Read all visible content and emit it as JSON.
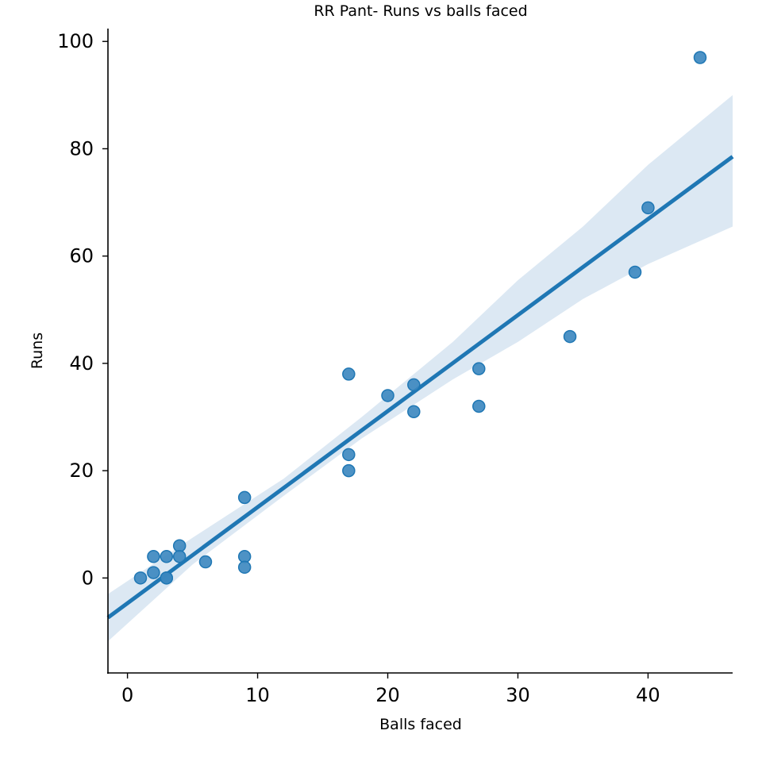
{
  "chart_data": {
    "type": "scatter",
    "title": "RR Pant- Runs vs balls faced",
    "xlabel": "Balls faced",
    "ylabel": "Runs",
    "xlim": [
      -1.5,
      46.5
    ],
    "ylim": [
      -17.7,
      102.4
    ],
    "xticks": [
      0,
      10,
      20,
      30,
      40
    ],
    "yticks": [
      0,
      20,
      40,
      60,
      80,
      100
    ],
    "grid": false,
    "points": [
      {
        "x": 1,
        "y": 0
      },
      {
        "x": 2,
        "y": 4
      },
      {
        "x": 2,
        "y": 1
      },
      {
        "x": 3,
        "y": 4
      },
      {
        "x": 3,
        "y": 0
      },
      {
        "x": 3,
        "y": 0
      },
      {
        "x": 4,
        "y": 6
      },
      {
        "x": 4,
        "y": 4
      },
      {
        "x": 6,
        "y": 3
      },
      {
        "x": 9,
        "y": 15
      },
      {
        "x": 9,
        "y": 4
      },
      {
        "x": 9,
        "y": 2
      },
      {
        "x": 17,
        "y": 38
      },
      {
        "x": 17,
        "y": 23
      },
      {
        "x": 17,
        "y": 20
      },
      {
        "x": 20,
        "y": 34
      },
      {
        "x": 22,
        "y": 36
      },
      {
        "x": 22,
        "y": 31
      },
      {
        "x": 27,
        "y": 39
      },
      {
        "x": 27,
        "y": 32
      },
      {
        "x": 34,
        "y": 45
      },
      {
        "x": 39,
        "y": 57
      },
      {
        "x": 40,
        "y": 69
      },
      {
        "x": 44,
        "y": 97
      }
    ],
    "regression": {
      "slope": 1.79,
      "intercept": -4.7
    },
    "confidence_band": {
      "x": [
        -1.5,
        5,
        12,
        18,
        25,
        30,
        35,
        40,
        46.5
      ],
      "upper": [
        -3,
        7.5,
        18.5,
        30,
        44,
        55.5,
        65.5,
        77,
        90
      ],
      "lower": [
        -11.8,
        2.5,
        15.3,
        26,
        37,
        44,
        52,
        58.5,
        65.5
      ]
    },
    "colors": {
      "point": "#3a86bf",
      "line": "#1f77b4",
      "band": "#dce8f3"
    }
  }
}
